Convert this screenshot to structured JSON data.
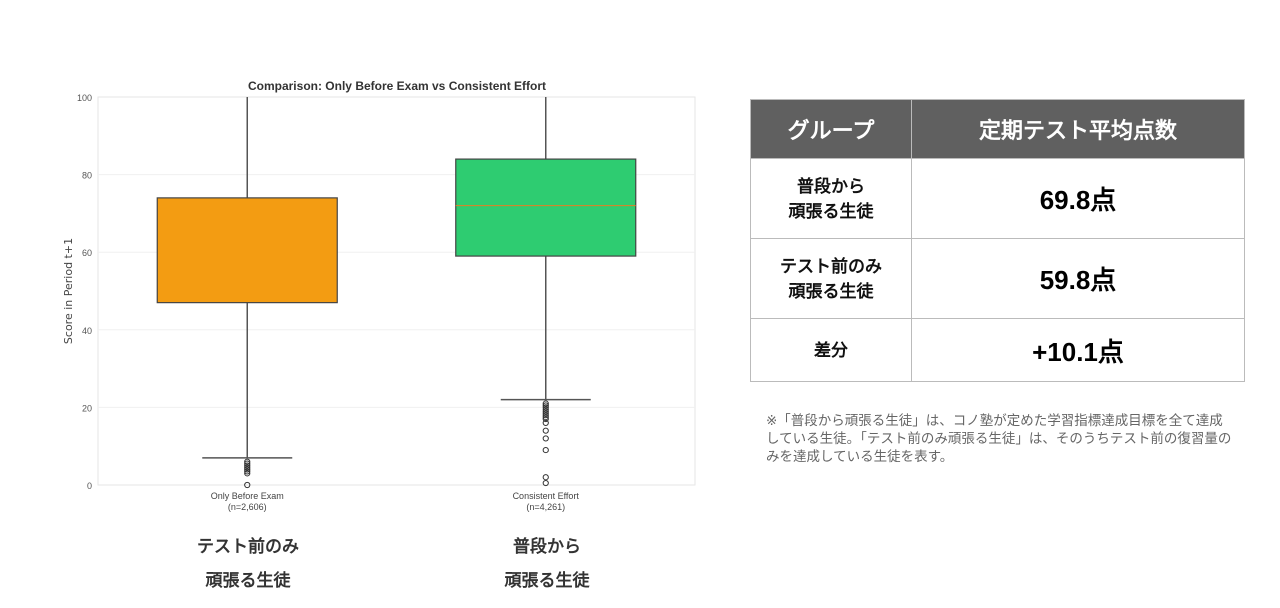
{
  "chart_data": {
    "type": "box",
    "title": "Comparison: Only Before Exam vs Consistent Effort",
    "ylabel": "Score in Period t+1",
    "ylim": [
      0,
      100
    ],
    "yticks": [
      0,
      20,
      40,
      60,
      80,
      100
    ],
    "grid": true,
    "series": [
      {
        "name": "Only Before Exam",
        "n_label": "(n=2,606)",
        "color": "#f39c12",
        "q1": 47,
        "q3": 74,
        "median": null,
        "whisker_low": 7,
        "whisker_high": 100,
        "outliers": [
          6,
          5.5,
          5,
          4.5,
          4,
          3.5,
          3,
          0
        ]
      },
      {
        "name": "Consistent Effort",
        "n_label": "(n=4,261)",
        "color": "#2ecc71",
        "q1": 59,
        "q3": 84,
        "median": 72,
        "whisker_low": 22,
        "whisker_high": 100,
        "outliers": [
          21,
          20.5,
          20,
          19.5,
          19,
          18.5,
          18,
          17.5,
          17,
          16,
          14,
          12,
          9,
          2,
          0.5
        ]
      }
    ]
  },
  "bottom_labels": [
    {
      "line1": "テスト前のみ",
      "line2": "頑張る生徒"
    },
    {
      "line1": "普段から",
      "line2": "頑張る生徒"
    }
  ],
  "table": {
    "headers": [
      "グループ",
      "定期テスト平均点数"
    ],
    "rows": [
      {
        "group_line1": "普段から",
        "group_line2": "頑張る生徒",
        "value": "69.8点"
      },
      {
        "group_line1": "テスト前のみ",
        "group_line2": "頑張る生徒",
        "value": "59.8点"
      },
      {
        "group_line1": "差分",
        "group_line2": "",
        "value": "+10.1点"
      }
    ],
    "header_color": "#606060"
  },
  "note": "※「普段から頑張る生徒」は、コノ塾が定めた学習指標達成目標を全て達成している生徒。「テスト前のみ頑張る生徒」は、そのうちテスト前の復習量のみを達成している生徒を表す。"
}
